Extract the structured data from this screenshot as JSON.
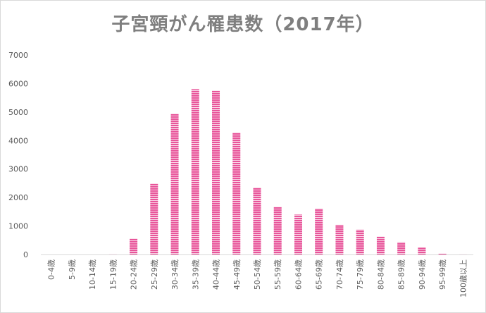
{
  "chart_data": {
    "type": "bar",
    "title": "子宮頸がん罹患数（2017年）",
    "xlabel": "",
    "ylabel": "",
    "ylim": [
      0,
      7000
    ],
    "yticks": [
      0,
      1000,
      2000,
      3000,
      4000,
      5000,
      6000,
      7000
    ],
    "grid": false,
    "legend": "none",
    "categories": [
      "0-4歳",
      "5-9歳",
      "10-14歳",
      "15-19歳",
      "20-24歳",
      "25-29歳",
      "30-34歳",
      "35-39歳",
      "40-44歳",
      "45-49歳",
      "50-54歳",
      "55-59歳",
      "60-64歳",
      "65-69歳",
      "70-74歳",
      "75-79歳",
      "80-84歳",
      "85-89歳",
      "90-94歳",
      "95-99歳",
      "100歳以上"
    ],
    "values": [
      0,
      0,
      0,
      3,
      560,
      2490,
      4940,
      5800,
      5750,
      4280,
      2350,
      1670,
      1400,
      1610,
      1040,
      870,
      630,
      430,
      240,
      30,
      2
    ],
    "colors": {
      "bar": "#e8559a",
      "bar_stripe": "#ffffff",
      "axis": "#d9d9d9",
      "tick_label": "#595959",
      "title": "#7f7f7f"
    }
  }
}
